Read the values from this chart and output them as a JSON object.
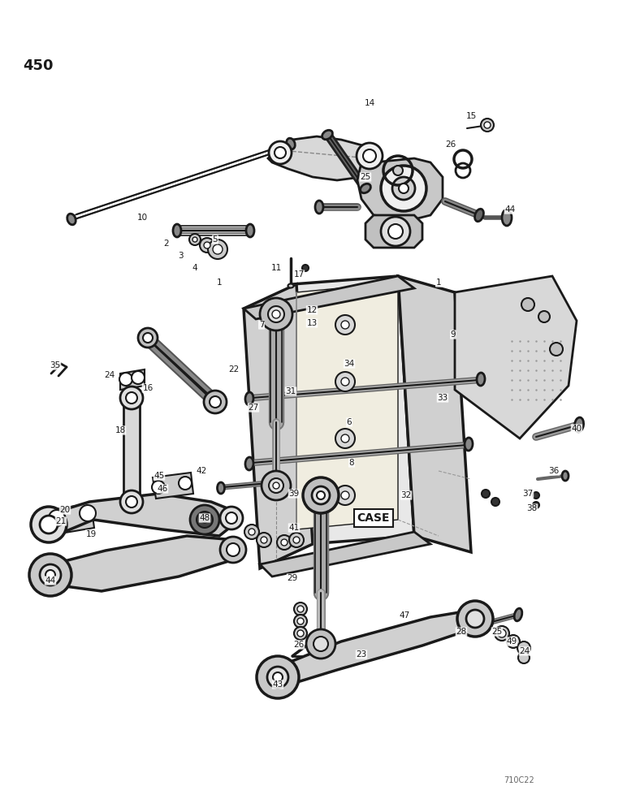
{
  "page_number": "450",
  "figure_code": "710C22",
  "bg": "#ffffff",
  "lc": "#1a1a1a",
  "page_num_fs": 13,
  "fig_code_fs": 7,
  "label_fs": 7.5
}
